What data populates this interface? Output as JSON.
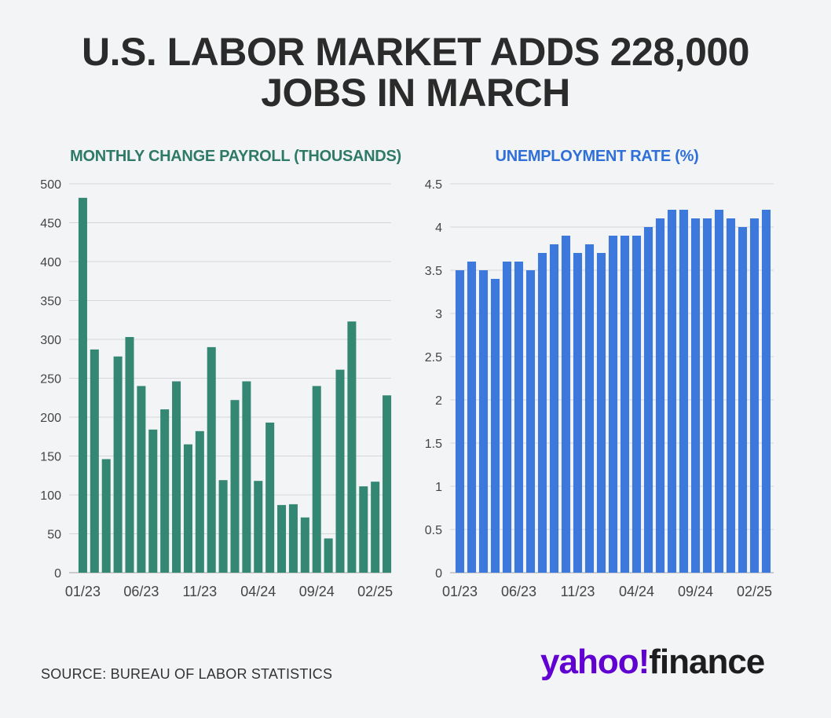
{
  "headline": {
    "line1": "U.S. LABOR MARKET ADDS 228,000",
    "line2": "JOBS IN MARCH"
  },
  "source": "SOURCE: BUREAU OF LABOR STATISTICS",
  "logo": {
    "part1": "yahoo!",
    "part2": "finance"
  },
  "colors": {
    "payroll": "#338773",
    "rate": "#3d78dc",
    "grid": "#d6d6d8",
    "background": "#f3f4f6"
  },
  "chart_data": [
    {
      "type": "bar",
      "title": "MONTHLY CHANGE PAYROLL (THOUSANDS)",
      "xlabel": "",
      "ylabel": "",
      "categories": [
        "01/23",
        "02/23",
        "03/23",
        "04/23",
        "05/23",
        "06/23",
        "07/23",
        "08/23",
        "09/23",
        "10/23",
        "11/23",
        "12/23",
        "01/24",
        "02/24",
        "03/24",
        "04/24",
        "05/24",
        "06/24",
        "07/24",
        "08/24",
        "09/24",
        "10/24",
        "11/24",
        "12/24",
        "01/25",
        "02/25",
        "03/25"
      ],
      "values": [
        482,
        287,
        146,
        278,
        303,
        240,
        184,
        210,
        246,
        165,
        182,
        290,
        119,
        222,
        246,
        118,
        193,
        87,
        88,
        71,
        240,
        44,
        261,
        323,
        111,
        117,
        228
      ],
      "ylim": [
        0,
        500
      ],
      "yticks": [
        0,
        50,
        100,
        150,
        200,
        250,
        300,
        350,
        400,
        450,
        500
      ],
      "xtick_labels": [
        "01/23",
        "06/23",
        "11/23",
        "04/24",
        "09/24",
        "02/25"
      ],
      "grid": true
    },
    {
      "type": "bar",
      "title": "UNEMPLOYMENT RATE (%)",
      "xlabel": "",
      "ylabel": "",
      "categories": [
        "01/23",
        "02/23",
        "03/23",
        "04/23",
        "05/23",
        "06/23",
        "07/23",
        "08/23",
        "09/23",
        "10/23",
        "11/23",
        "12/23",
        "01/24",
        "02/24",
        "03/24",
        "04/24",
        "05/24",
        "06/24",
        "07/24",
        "08/24",
        "09/24",
        "10/24",
        "11/24",
        "12/24",
        "01/25",
        "02/25",
        "03/25"
      ],
      "values": [
        3.5,
        3.6,
        3.5,
        3.4,
        3.6,
        3.6,
        3.5,
        3.7,
        3.8,
        3.9,
        3.7,
        3.8,
        3.7,
        3.9,
        3.9,
        3.9,
        4.0,
        4.1,
        4.2,
        4.2,
        4.1,
        4.1,
        4.2,
        4.1,
        4.0,
        4.1,
        4.2
      ],
      "ylim": [
        0,
        4.5
      ],
      "yticks": [
        "0",
        "0.5",
        "1",
        "1.5",
        "2",
        "2.5",
        "3",
        "3.5",
        "4",
        "4.5"
      ],
      "xtick_labels": [
        "01/23",
        "06/23",
        "11/23",
        "04/24",
        "09/24",
        "02/25"
      ],
      "grid": true
    }
  ]
}
